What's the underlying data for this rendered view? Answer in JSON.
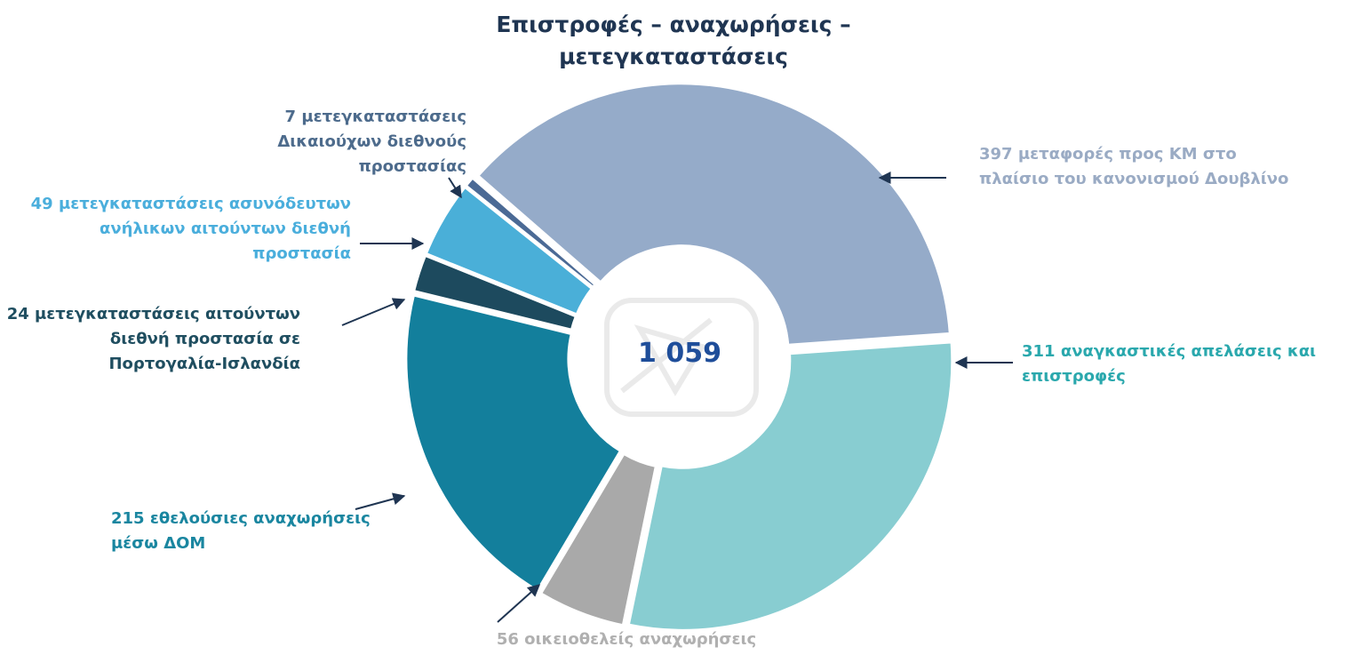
{
  "chart_data": {
    "type": "donut",
    "title": "Επιστροφές – αναχωρήσεις – μετεγκαταστάσεις",
    "center_label": "1 059",
    "categories": [
      "μεταφορές προς ΚΜ στο πλαίσιο του κανονισμού Δουβλίνο",
      "αναγκαστικές απελάσεις και επιστροφές",
      "οικειοθελείς αναχωρήσεις",
      "εθελούσιες αναχωρήσεις μέσω ΔΟΜ",
      "μετεγκαταστάσεις αιτούντων διεθνή προστασία σε Πορτογαλία-Ισλανδία",
      "μετεγκαταστάσεις ασυνόδευτων ανήλικων αιτούντων διεθνή προστασία",
      "μετεγκαταστάσεις Δικαιούχων διεθνούς προστασίας"
    ],
    "values": [
      397,
      311,
      56,
      215,
      24,
      49,
      7
    ],
    "colors": [
      "#95abc9",
      "#88cdd1",
      "#a9a9a9",
      "#137f9c",
      "#1d4a5e",
      "#4aafd8",
      "#4b6a95"
    ],
    "label_colors": [
      "#9aabc4",
      "#2aa8ad",
      "#b0b0b0",
      "#1a86a0",
      "#1f4e60",
      "#4aaedc",
      "#4d6b8c"
    ]
  }
}
